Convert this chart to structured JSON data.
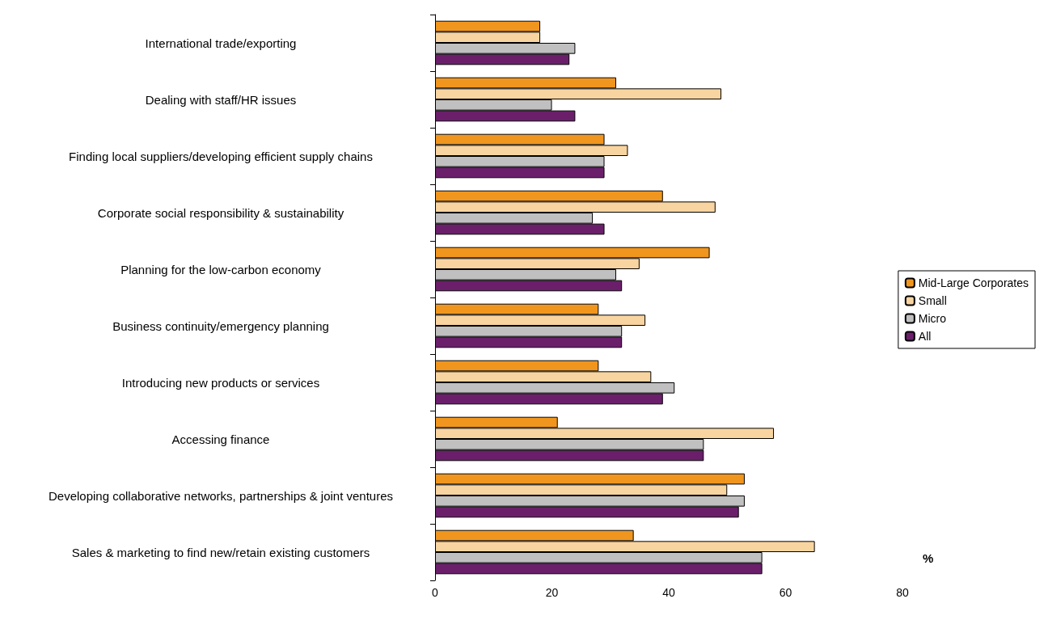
{
  "chart_data": {
    "type": "bar",
    "orientation": "horizontal",
    "xlabel": "%",
    "categories": [
      "International trade/exporting",
      "Dealing with staff/HR issues",
      "Finding local suppliers/developing efficient supply chains",
      "Corporate social responsibility & sustainability",
      "Planning for the low-carbon economy",
      "Business continuity/emergency planning",
      "Introducing new products or services",
      "Accessing finance",
      "Developing collaborative networks, partnerships & joint ventures",
      "Sales & marketing to find new/retain existing customers"
    ],
    "series": [
      {
        "name": "Mid-Large Corporates",
        "color": "#f0961e",
        "values": [
          18,
          31,
          29,
          39,
          47,
          28,
          28,
          21,
          53,
          34
        ]
      },
      {
        "name": "Small",
        "color": "#f8d4a0",
        "values": [
          18,
          49,
          33,
          48,
          35,
          36,
          37,
          58,
          50,
          65
        ]
      },
      {
        "name": "Micro",
        "color": "#c0c0c0",
        "values": [
          24,
          20,
          29,
          27,
          31,
          32,
          41,
          46,
          53,
          56
        ]
      },
      {
        "name": "All",
        "color": "#6b1f6b",
        "values": [
          23,
          24,
          29,
          29,
          32,
          32,
          39,
          46,
          52,
          56
        ]
      }
    ],
    "xlim": [
      0,
      80
    ],
    "xticks": [
      0,
      20,
      40,
      60,
      80
    ],
    "grid": false,
    "legend": "right"
  }
}
